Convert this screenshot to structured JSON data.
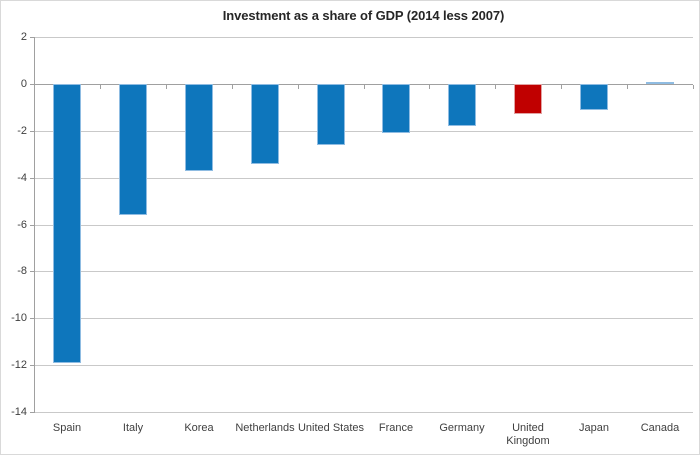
{
  "chart_data": {
    "type": "bar",
    "title": "Investment as a share of GDP (2014 less 2007)",
    "categories": [
      "Spain",
      "Italy",
      "Korea",
      "Netherlands",
      "United States",
      "France",
      "Germany",
      "United Kingdom",
      "Japan",
      "Canada"
    ],
    "values": [
      -11.9,
      -5.6,
      -3.7,
      -3.4,
      -2.6,
      -2.1,
      -1.8,
      -1.3,
      -1.1,
      0.1
    ],
    "highlight_category": "United Kingdom",
    "xlabel": "",
    "ylabel": "",
    "ylim": [
      -14,
      2
    ],
    "yticks": [
      2,
      0,
      -2,
      -4,
      -6,
      -8,
      -10,
      -12,
      -14
    ],
    "grid": true,
    "legend": "none",
    "colors": {
      "bar_fill": "#0e76bc",
      "bar_border": "#8fbce2",
      "highlight_fill": "#c00000",
      "highlight_border": "#e2a2a2",
      "gridline": "#c9c9c9",
      "axis": "#a0a0a0",
      "label": "#404040",
      "title": "#262626",
      "background": "#ffffff",
      "chart_border": "#d9d9d9"
    }
  }
}
